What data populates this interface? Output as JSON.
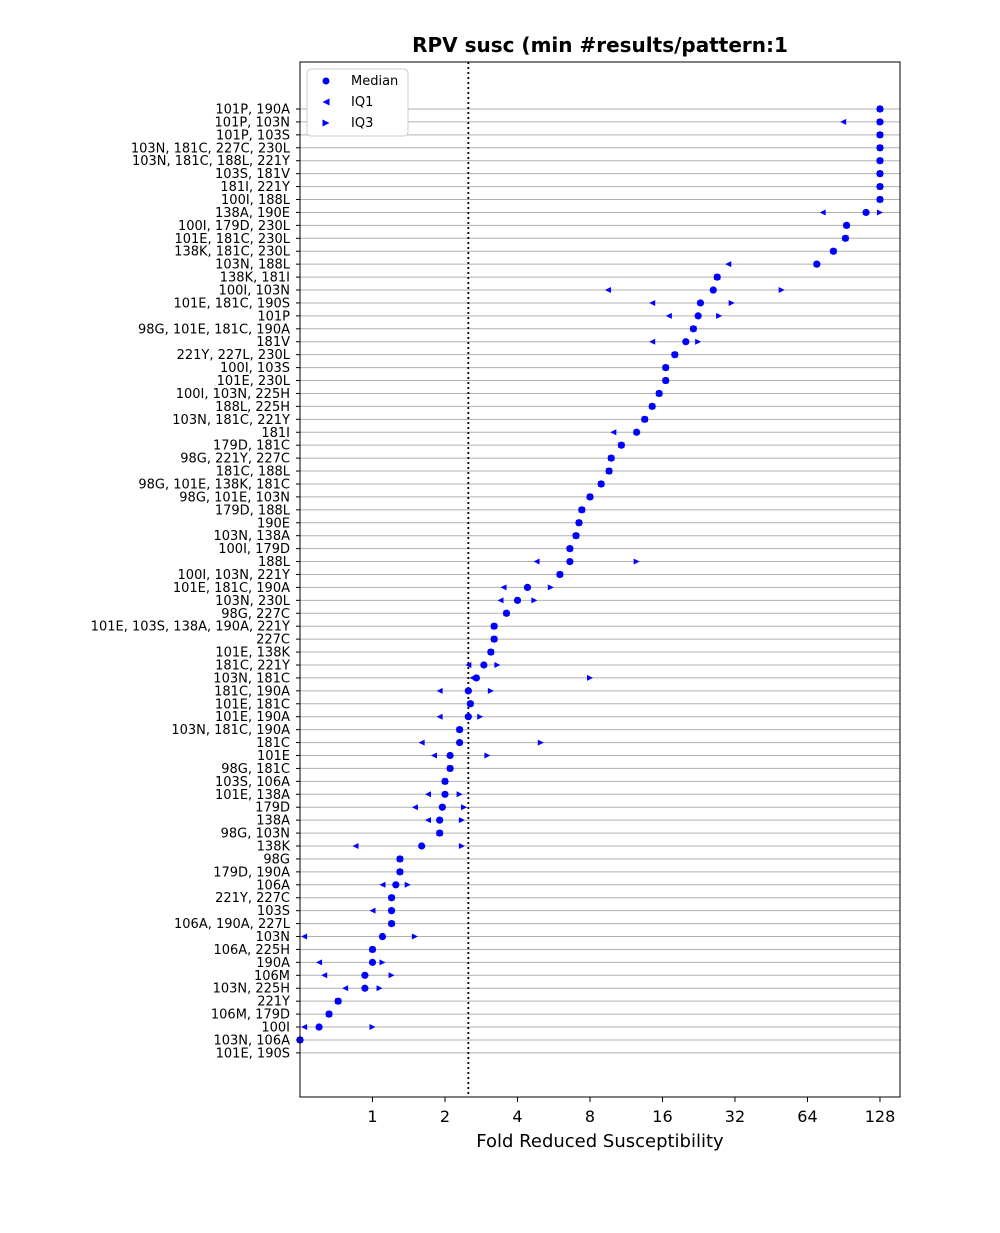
{
  "chart_data": {
    "type": "scatter",
    "title": "RPV susc (min #results/pattern:1",
    "xlabel": "Fold Reduced Susceptibility",
    "ylabel": "",
    "x_scale": "log2",
    "xlim": [
      0.5,
      155
    ],
    "x_ticks": [
      1,
      2,
      4,
      8,
      16,
      32,
      64,
      128
    ],
    "x_tick_labels": [
      "1",
      "2",
      "4",
      "8",
      "16",
      "32",
      "64",
      "128"
    ],
    "reference_line": 2.5,
    "grid": "horizontal",
    "legend_position": "top-left",
    "colors": {
      "marker": "#0000ff",
      "grid": "#b0b0b0",
      "axis": "#000000"
    },
    "legend": [
      "Median",
      "IQ1",
      "IQ3"
    ],
    "patterns": [
      {
        "label": "101P, 190A",
        "median": 128,
        "iq1": 128,
        "iq3": 128
      },
      {
        "label": "101P, 103N",
        "median": 128,
        "iq1": 90,
        "iq3": 128
      },
      {
        "label": "101P, 103S",
        "median": 128,
        "iq1": 128,
        "iq3": 128
      },
      {
        "label": "103N, 181C, 227C, 230L",
        "median": 128,
        "iq1": 128,
        "iq3": 128
      },
      {
        "label": "103N, 181C, 188L, 221Y",
        "median": 128,
        "iq1": 128,
        "iq3": 128
      },
      {
        "label": "103S, 181V",
        "median": 128,
        "iq1": 128,
        "iq3": 128
      },
      {
        "label": "181I, 221Y",
        "median": 128,
        "iq1": 128,
        "iq3": 128
      },
      {
        "label": "100I, 188L",
        "median": 128,
        "iq1": 128,
        "iq3": 128
      },
      {
        "label": "138A, 190E",
        "median": 112,
        "iq1": 74,
        "iq3": 128
      },
      {
        "label": "100I, 179D, 230L",
        "median": 93,
        "iq1": 93,
        "iq3": 93
      },
      {
        "label": "101E, 181C, 230L",
        "median": 92,
        "iq1": 92,
        "iq3": 92
      },
      {
        "label": "138K, 181C, 230L",
        "median": 82,
        "iq1": 82,
        "iq3": 82
      },
      {
        "label": "103N, 188L",
        "median": 70,
        "iq1": 30,
        "iq3": 70
      },
      {
        "label": "138K, 181I",
        "median": 27,
        "iq1": 27,
        "iq3": 27
      },
      {
        "label": "100I, 103N",
        "median": 26,
        "iq1": 9.5,
        "iq3": 50
      },
      {
        "label": "101E, 181C, 190S",
        "median": 23,
        "iq1": 14.5,
        "iq3": 31
      },
      {
        "label": "101P",
        "median": 22.5,
        "iq1": 17,
        "iq3": 27.5
      },
      {
        "label": "98G, 101E, 181C, 190A",
        "median": 21.5,
        "iq1": 21.5,
        "iq3": 21.5
      },
      {
        "label": "181V",
        "median": 20,
        "iq1": 14.5,
        "iq3": 22.5
      },
      {
        "label": "221Y, 227L, 230L",
        "median": 18,
        "iq1": 18,
        "iq3": 18
      },
      {
        "label": "100I, 103S",
        "median": 16.5,
        "iq1": 16.5,
        "iq3": 16.5
      },
      {
        "label": "101E, 230L",
        "median": 16.5,
        "iq1": 16.5,
        "iq3": 16.5
      },
      {
        "label": "100I, 103N, 225H",
        "median": 15.5,
        "iq1": 15.5,
        "iq3": 15.5
      },
      {
        "label": "188L, 225H",
        "median": 14.5,
        "iq1": 14.5,
        "iq3": 14.5
      },
      {
        "label": "103N, 181C, 221Y",
        "median": 13.5,
        "iq1": 13.5,
        "iq3": 13.5
      },
      {
        "label": "181I",
        "median": 12.5,
        "iq1": 10,
        "iq3": 12.5
      },
      {
        "label": "179D, 181C",
        "median": 10.8,
        "iq1": 10.8,
        "iq3": 10.8
      },
      {
        "label": "98G, 221Y, 227C",
        "median": 9.8,
        "iq1": 9.8,
        "iq3": 9.8
      },
      {
        "label": "181C, 188L",
        "median": 9.6,
        "iq1": 9.6,
        "iq3": 9.6
      },
      {
        "label": "98G, 101E, 138K, 181C",
        "median": 8.9,
        "iq1": 8.9,
        "iq3": 8.9
      },
      {
        "label": "98G, 101E, 103N",
        "median": 8.0,
        "iq1": 8.0,
        "iq3": 8.0
      },
      {
        "label": "179D, 188L",
        "median": 7.4,
        "iq1": 7.4,
        "iq3": 7.4
      },
      {
        "label": "190E",
        "median": 7.2,
        "iq1": 7.2,
        "iq3": 7.2
      },
      {
        "label": "103N, 138A",
        "median": 7.0,
        "iq1": 7.0,
        "iq3": 7.0
      },
      {
        "label": "100I, 179D",
        "median": 6.6,
        "iq1": 6.6,
        "iq3": 6.6
      },
      {
        "label": "188L",
        "median": 6.6,
        "iq1": 4.8,
        "iq3": 12.5
      },
      {
        "label": "100I, 103N, 221Y",
        "median": 6.0,
        "iq1": 6.0,
        "iq3": 6.0
      },
      {
        "label": "101E, 181C, 190A",
        "median": 4.4,
        "iq1": 3.5,
        "iq3": 5.5
      },
      {
        "label": "103N, 230L",
        "median": 4.0,
        "iq1": 3.4,
        "iq3": 4.7
      },
      {
        "label": "98G, 227C",
        "median": 3.6,
        "iq1": 3.6,
        "iq3": 3.6
      },
      {
        "label": "101E, 103S, 138A, 190A, 221Y",
        "median": 3.2,
        "iq1": 3.2,
        "iq3": 3.2
      },
      {
        "label": "227C",
        "median": 3.2,
        "iq1": 3.2,
        "iq3": 3.2
      },
      {
        "label": "101E, 138K",
        "median": 3.1,
        "iq1": 3.1,
        "iq3": 3.1
      },
      {
        "label": "181C, 221Y",
        "median": 2.9,
        "iq1": 2.5,
        "iq3": 3.3
      },
      {
        "label": "103N, 181C",
        "median": 2.7,
        "iq1": 2.6,
        "iq3": 8.0
      },
      {
        "label": "181C, 190A",
        "median": 2.5,
        "iq1": 1.9,
        "iq3": 3.1
      },
      {
        "label": "101E, 181C",
        "median": 2.55,
        "iq1": 2.55,
        "iq3": 2.55
      },
      {
        "label": "101E, 190A",
        "median": 2.5,
        "iq1": 1.9,
        "iq3": 2.8
      },
      {
        "label": "103N, 181C, 190A",
        "median": 2.3,
        "iq1": 2.3,
        "iq3": 2.3
      },
      {
        "label": "181C",
        "median": 2.3,
        "iq1": 1.6,
        "iq3": 5.0
      },
      {
        "label": "101E",
        "median": 2.1,
        "iq1": 1.8,
        "iq3": 3.0
      },
      {
        "label": "98G, 181C",
        "median": 2.1,
        "iq1": 2.1,
        "iq3": 2.1
      },
      {
        "label": "103S, 106A",
        "median": 2.0,
        "iq1": 2.0,
        "iq3": 2.0
      },
      {
        "label": "101E, 138A",
        "median": 2.0,
        "iq1": 1.7,
        "iq3": 2.3
      },
      {
        "label": "179D",
        "median": 1.95,
        "iq1": 1.5,
        "iq3": 2.4
      },
      {
        "label": "138A",
        "median": 1.9,
        "iq1": 1.7,
        "iq3": 2.35
      },
      {
        "label": "98G, 103N",
        "median": 1.9,
        "iq1": 1.9,
        "iq3": 1.9
      },
      {
        "label": "138K",
        "median": 1.6,
        "iq1": 0.85,
        "iq3": 2.35
      },
      {
        "label": "98G",
        "median": 1.3,
        "iq1": 1.3,
        "iq3": 1.3
      },
      {
        "label": "179D, 190A",
        "median": 1.3,
        "iq1": 1.3,
        "iq3": 1.3
      },
      {
        "label": "106A",
        "median": 1.25,
        "iq1": 1.1,
        "iq3": 1.4
      },
      {
        "label": "221Y, 227C",
        "median": 1.2,
        "iq1": 1.2,
        "iq3": 1.2
      },
      {
        "label": "103S",
        "median": 1.2,
        "iq1": 1.0,
        "iq3": 1.2
      },
      {
        "label": "106A, 190A, 227L",
        "median": 1.2,
        "iq1": 1.2,
        "iq3": 1.2
      },
      {
        "label": "103N",
        "median": 1.1,
        "iq1": 0.52,
        "iq3": 1.5
      },
      {
        "label": "106A, 225H",
        "median": 1.0,
        "iq1": 1.0,
        "iq3": 1.0
      },
      {
        "label": "190A",
        "median": 1.0,
        "iq1": 0.6,
        "iq3": 1.1
      },
      {
        "label": "106M",
        "median": 0.93,
        "iq1": 0.63,
        "iq3": 1.2
      },
      {
        "label": "103N, 225H",
        "median": 0.93,
        "iq1": 0.77,
        "iq3": 1.07
      },
      {
        "label": "221Y",
        "median": 0.72,
        "iq1": 0.72,
        "iq3": 0.72
      },
      {
        "label": "106M, 179D",
        "median": 0.66,
        "iq1": 0.66,
        "iq3": 0.66
      },
      {
        "label": "100I",
        "median": 0.6,
        "iq1": 0.52,
        "iq3": 1.0
      },
      {
        "label": "103N, 106A",
        "median": 0.5,
        "iq1": 0.5,
        "iq3": 0.5
      },
      {
        "label": "101E, 190S",
        "median": null,
        "iq1": null,
        "iq3": null
      }
    ]
  }
}
